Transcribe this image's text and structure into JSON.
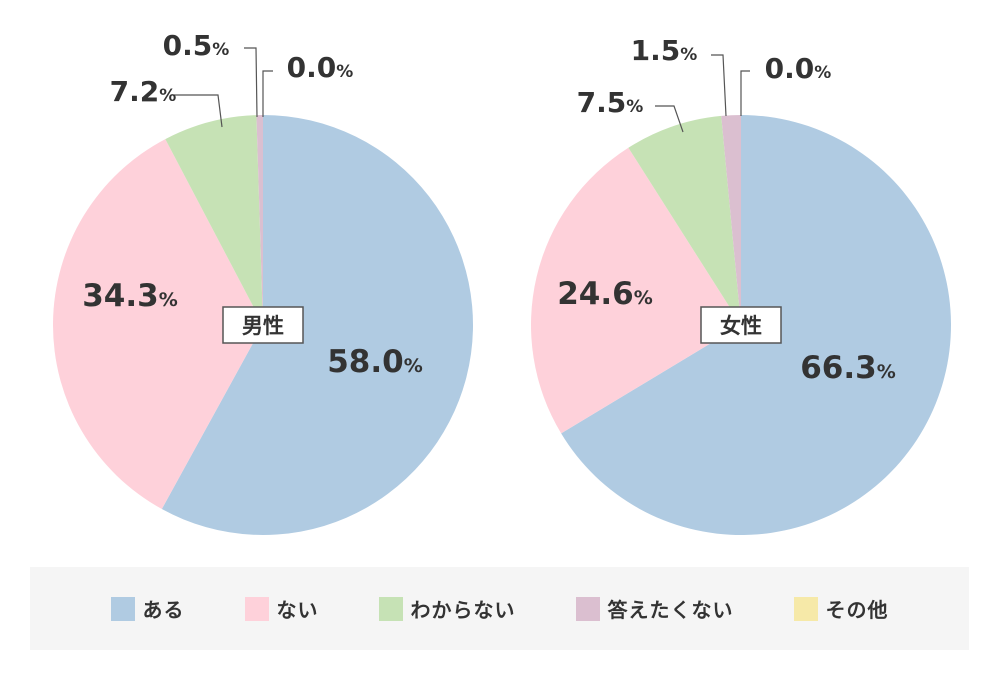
{
  "chart_data": [
    {
      "type": "pie",
      "center_label": "男性",
      "slices": [
        {
          "category": "ある",
          "value": 58.0,
          "label": "58.0"
        },
        {
          "category": "ない",
          "value": 34.3,
          "label": "34.3"
        },
        {
          "category": "わからない",
          "value": 7.2,
          "label": "7.2"
        },
        {
          "category": "答えたくない",
          "value": 0.5,
          "label": "0.5"
        },
        {
          "category": "その他",
          "value": 0.0,
          "label": "0.0"
        }
      ]
    },
    {
      "type": "pie",
      "center_label": "女性",
      "slices": [
        {
          "category": "ある",
          "value": 66.3,
          "label": "66.3"
        },
        {
          "category": "ない",
          "value": 24.6,
          "label": "24.6"
        },
        {
          "category": "わからない",
          "value": 7.5,
          "label": "7.5"
        },
        {
          "category": "答えたくない",
          "value": 1.5,
          "label": "1.5"
        },
        {
          "category": "その他",
          "value": 0.0,
          "label": "0.0"
        }
      ]
    }
  ],
  "percent_suffix": "%",
  "legend": [
    {
      "label": "ある",
      "color": "#b0cbe2"
    },
    {
      "label": "ない",
      "color": "#fed1da"
    },
    {
      "label": "わからない",
      "color": "#c6e2b5"
    },
    {
      "label": "答えたくない",
      "color": "#dbbfd0"
    },
    {
      "label": "その他",
      "color": "#f6e9a8"
    }
  ]
}
